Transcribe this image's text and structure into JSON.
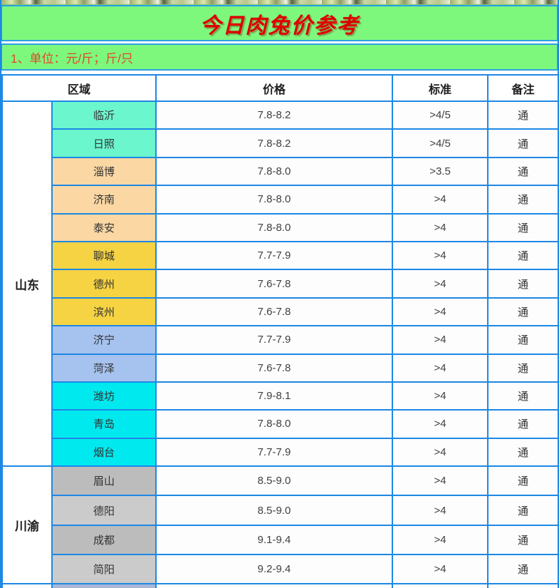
{
  "banner": {
    "title": "今日肉兔价参考",
    "unit_note": "1、单位：元/斤；斤/只"
  },
  "table": {
    "headers": {
      "region": "区域",
      "price": "价格",
      "standard": "标准",
      "note": "备注"
    },
    "groups": [
      {
        "province": "山东",
        "rows": [
          {
            "city": "临沂",
            "color": "aqua",
            "price": "7.8-8.2",
            "standard": ">4/5",
            "note": "通"
          },
          {
            "city": "日照",
            "color": "aqua",
            "price": "7.8-8.2",
            "standard": ">4/5",
            "note": "通"
          },
          {
            "city": "淄博",
            "color": "peach",
            "price": "7.8-8.0",
            "standard": ">3.5",
            "note": "通"
          },
          {
            "city": "济南",
            "color": "peach",
            "price": "7.8-8.0",
            "standard": ">4",
            "note": "通"
          },
          {
            "city": "泰安",
            "color": "peach",
            "price": "7.8-8.0",
            "standard": ">4",
            "note": "通"
          },
          {
            "city": "聊城",
            "color": "gold",
            "price": "7.7-7.9",
            "standard": ">4",
            "note": "通"
          },
          {
            "city": "德州",
            "color": "gold",
            "price": "7.6-7.8",
            "standard": ">4",
            "note": "通"
          },
          {
            "city": "滨州",
            "color": "gold",
            "price": "7.6-7.8",
            "standard": ">4",
            "note": "通"
          },
          {
            "city": "济宁",
            "color": "periwinkle",
            "price": "7.7-7.9",
            "standard": ">4",
            "note": "通"
          },
          {
            "city": "菏泽",
            "color": "periwinkle",
            "price": "7.6-7.8",
            "standard": ">4",
            "note": "通"
          },
          {
            "city": "潍坊",
            "color": "cyan",
            "price": "7.9-8.1",
            "standard": ">4",
            "note": "通"
          },
          {
            "city": "青岛",
            "color": "cyan",
            "price": "7.8-8.0",
            "standard": ">4",
            "note": "通"
          },
          {
            "city": "烟台",
            "color": "cyan",
            "price": "7.7-7.9",
            "standard": ">4",
            "note": "通"
          }
        ]
      },
      {
        "province": "川渝",
        "rows": [
          {
            "city": "眉山",
            "color": "gray-dark",
            "price": "8.5-9.0",
            "standard": ">4",
            "note": "通"
          },
          {
            "city": "德阳",
            "color": "gray-light",
            "price": "8.5-9.0",
            "standard": ">4",
            "note": "通"
          },
          {
            "city": "成都",
            "color": "gray-dark",
            "price": "9.1-9.4",
            "standard": ">4",
            "note": "通"
          },
          {
            "city": "简阳",
            "color": "gray-light",
            "price": "9.2-9.4",
            "standard": ">4",
            "note": "通"
          }
        ]
      }
    ],
    "partial_row": {
      "color": "blue-gray"
    }
  },
  "palette": {
    "border_blue": "#1e88e5",
    "banner_green": "#7df87d",
    "title_red": "#de0000",
    "note_red": "#e2462b",
    "aqua": "#6cf6ce",
    "peach": "#fad7a3",
    "gold": "#f5d342",
    "periwinkle": "#a6c2ee",
    "cyan": "#00e9ef",
    "gray_dark": "#bcbcbc",
    "gray_light": "#cbcbcb",
    "blue_gray": "#a9b7d6"
  }
}
